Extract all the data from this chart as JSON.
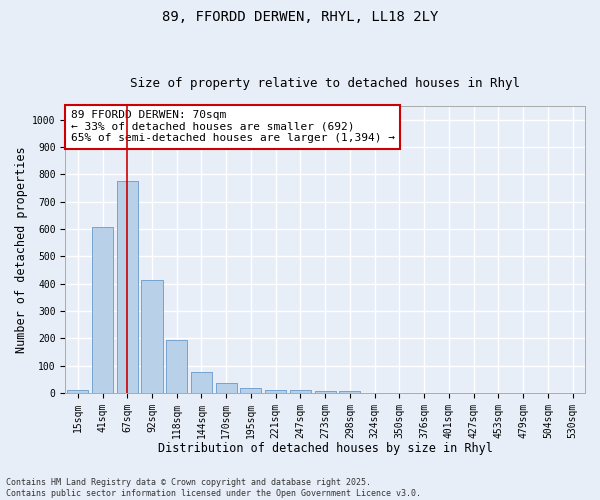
{
  "title_line1": "89, FFORDD DERWEN, RHYL, LL18 2LY",
  "title_line2": "Size of property relative to detached houses in Rhyl",
  "xlabel": "Distribution of detached houses by size in Rhyl",
  "ylabel": "Number of detached properties",
  "categories": [
    "15sqm",
    "41sqm",
    "67sqm",
    "92sqm",
    "118sqm",
    "144sqm",
    "170sqm",
    "195sqm",
    "221sqm",
    "247sqm",
    "273sqm",
    "298sqm",
    "324sqm",
    "350sqm",
    "376sqm",
    "401sqm",
    "427sqm",
    "453sqm",
    "479sqm",
    "504sqm",
    "530sqm"
  ],
  "values": [
    12,
    607,
    775,
    413,
    192,
    77,
    35,
    18,
    12,
    12,
    8,
    5,
    0,
    0,
    0,
    0,
    0,
    0,
    0,
    0,
    0
  ],
  "bar_color": "#b8d0e8",
  "bar_edge_color": "#6699cc",
  "vline_x": 2.0,
  "vline_color": "#cc0000",
  "annotation_text": "89 FFORDD DERWEN: 70sqm\n← 33% of detached houses are smaller (692)\n65% of semi-detached houses are larger (1,394) →",
  "annotation_box_color": "#ffffff",
  "annotation_box_edgecolor": "#cc0000",
  "ylim": [
    0,
    1050
  ],
  "yticks": [
    0,
    100,
    200,
    300,
    400,
    500,
    600,
    700,
    800,
    900,
    1000
  ],
  "footer_text": "Contains HM Land Registry data © Crown copyright and database right 2025.\nContains public sector information licensed under the Open Government Licence v3.0.",
  "bg_color": "#e8eef8",
  "plot_bg_color": "#e8eef8",
  "grid_color": "#ffffff",
  "title_fontsize": 10,
  "subtitle_fontsize": 9,
  "axis_label_fontsize": 8.5,
  "tick_fontsize": 7,
  "annotation_fontsize": 8,
  "footer_fontsize": 6
}
